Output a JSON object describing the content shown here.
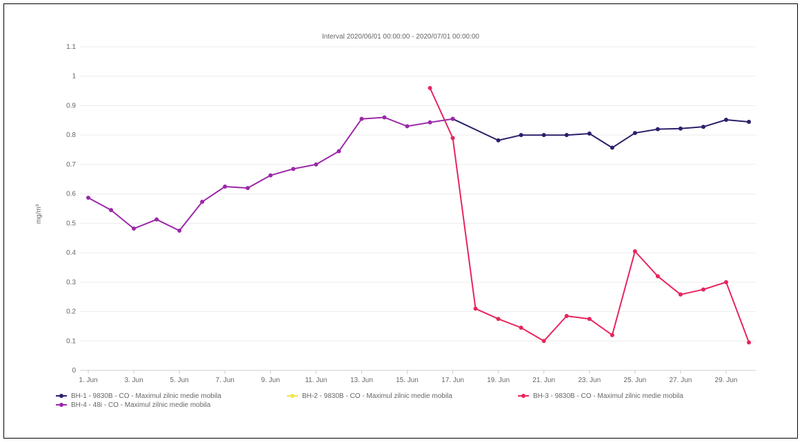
{
  "chart_data": {
    "type": "line",
    "title": "Interval 2020/06/01 00:00:00 - 2020/07/01 00:00:00",
    "ylabel": "mg/m³",
    "ylim": [
      0,
      1.1
    ],
    "y_ticks": [
      "0",
      "0.1",
      "0.2",
      "0.3",
      "0.4",
      "0.5",
      "0.6",
      "0.7",
      "0.8",
      "0.9",
      "1",
      "1.1"
    ],
    "x_tick_labels": [
      "1. Jun",
      "3. Jun",
      "5. Jun",
      "7. Jun",
      "9. Jun",
      "11. Jun",
      "13. Jun",
      "15. Jun",
      "17. Jun",
      "19. Jun",
      "21. Jun",
      "23. Jun",
      "25. Jun",
      "27. Jun",
      "29. Jun"
    ],
    "x_tick_days": [
      1,
      3,
      5,
      7,
      9,
      11,
      13,
      15,
      17,
      19,
      21,
      23,
      25,
      27,
      29
    ],
    "x_range_days": [
      1,
      30
    ],
    "grid": true,
    "legend_position": "bottom-left",
    "series": [
      {
        "name": "BH-1 - 9830B - CO - Maximul zilnic medie mobila",
        "color": "#2b1f6b",
        "points": [
          [
            17,
            0.855
          ],
          [
            19,
            0.782
          ],
          [
            20,
            0.8
          ],
          [
            21,
            0.8
          ],
          [
            22,
            0.8
          ],
          [
            23,
            0.805
          ],
          [
            24,
            0.757
          ],
          [
            25,
            0.807
          ],
          [
            26,
            0.82
          ],
          [
            27,
            0.822
          ],
          [
            28,
            0.828
          ],
          [
            29,
            0.852
          ],
          [
            30,
            0.845
          ]
        ]
      },
      {
        "name": "BH-2 - 9830B - CO - Maximul zilnic medie mobila",
        "color": "#f2e34c",
        "points": []
      },
      {
        "name": "BH-3 - 9830B - CO - Maximul zilnic medie mobila",
        "color": "#e8245c",
        "points": [
          [
            16,
            0.96
          ],
          [
            17,
            0.79
          ],
          [
            18,
            0.21
          ],
          [
            19,
            0.175
          ],
          [
            20,
            0.145
          ],
          [
            21,
            0.1
          ],
          [
            22,
            0.185
          ],
          [
            23,
            0.175
          ],
          [
            24,
            0.12
          ],
          [
            25,
            0.405
          ],
          [
            26,
            0.32
          ],
          [
            27,
            0.258
          ],
          [
            28,
            0.275
          ],
          [
            29,
            0.3
          ],
          [
            30,
            0.095
          ]
        ]
      },
      {
        "name": "BH-4 - 48i - CO - Maximul zilnic medie mobila",
        "color": "#9b27a8",
        "points": [
          [
            1,
            0.587
          ],
          [
            2,
            0.545
          ],
          [
            3,
            0.482
          ],
          [
            4,
            0.513
          ],
          [
            5,
            0.475
          ],
          [
            6,
            0.573
          ],
          [
            7,
            0.625
          ],
          [
            8,
            0.62
          ],
          [
            9,
            0.663
          ],
          [
            10,
            0.685
          ],
          [
            11,
            0.7
          ],
          [
            12,
            0.745
          ],
          [
            13,
            0.855
          ],
          [
            14,
            0.86
          ],
          [
            15,
            0.83
          ],
          [
            16,
            0.843
          ],
          [
            17,
            0.855
          ]
        ]
      }
    ]
  }
}
